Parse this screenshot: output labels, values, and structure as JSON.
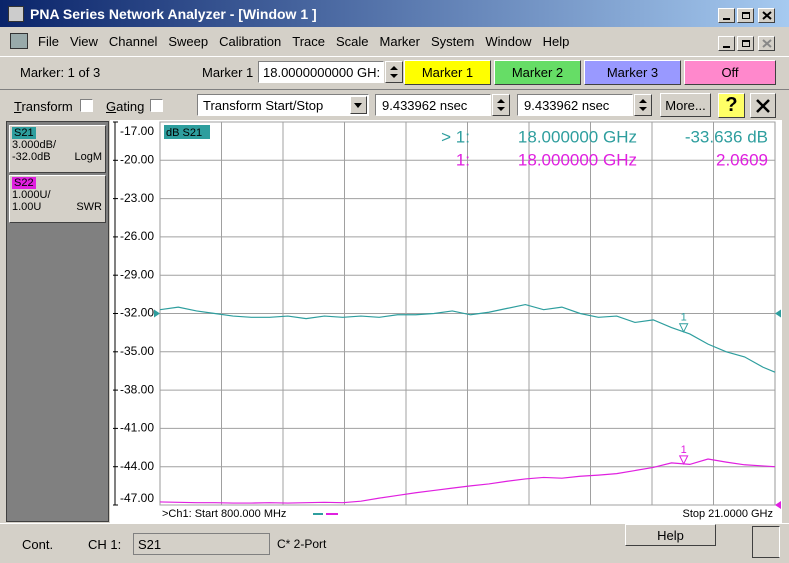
{
  "title_bar": {
    "title": "PNA Series Network Analyzer - [Window 1 ]"
  },
  "menu": [
    "File",
    "View",
    "Channel",
    "Sweep",
    "Calibration",
    "Trace",
    "Scale",
    "Marker",
    "System",
    "Window",
    "Help"
  ],
  "marker_bar": {
    "status": "Marker: 1 of 3",
    "label": "Marker 1",
    "value": "18.0000000000 GH:",
    "buttons": [
      "Marker 1",
      "Marker 2",
      "Marker 3",
      "Off"
    ]
  },
  "transform_bar": {
    "transform": "Transform",
    "gating": "Gating",
    "mode": "Transform Start/Stop",
    "start": "9.433962 nsec",
    "stop": "9.433962 nsec",
    "more": "More...",
    "help": "?"
  },
  "trace_panel": [
    {
      "scale": "3.000dB/",
      "ref": "-32.0dB",
      "format": "LogM"
    },
    {
      "scale": "1.000U/",
      "ref": "1.00U",
      "format": "SWR"
    }
  ],
  "chart_data": {
    "type": "line",
    "trace_label": "dB S21",
    "start_label": ">Ch1: Start  800.000 MHz",
    "stop_label": "Stop  21.0000 GHz",
    "xlim": [
      0.8,
      21
    ],
    "ylim": [
      -47,
      -17
    ],
    "y2lim": [
      1,
      11
    ],
    "yticks": [
      {
        "value": -17,
        "label": "-17.00"
      },
      {
        "value": -20,
        "label": "-20.00"
      },
      {
        "value": -23,
        "label": "-23.00"
      },
      {
        "value": -26,
        "label": "-26.00"
      },
      {
        "value": -29,
        "label": "-29.00"
      },
      {
        "value": -32,
        "label": "-32.00"
      },
      {
        "value": -35,
        "label": "-35.00"
      },
      {
        "value": -38,
        "label": "-38.00"
      },
      {
        "value": -41,
        "label": "-41.00"
      },
      {
        "value": -44,
        "label": "-44.00"
      },
      {
        "value": -47,
        "label": "-47.00"
      }
    ],
    "grid": true,
    "x": [
      0.8,
      1.4,
      2.0,
      2.6,
      3.2,
      3.8,
      4.4,
      5.0,
      5.6,
      6.2,
      6.8,
      7.4,
      8.0,
      8.6,
      9.2,
      9.8,
      10.4,
      11.0,
      11.6,
      12.2,
      12.8,
      13.4,
      14.0,
      14.6,
      15.2,
      15.8,
      16.4,
      17.0,
      17.6,
      18.2,
      18.8,
      19.4,
      20.0,
      20.6,
      21.0
    ],
    "series": [
      {
        "name": "S21",
        "color": "#2e9e9e",
        "values": [
          -31.7,
          -31.5,
          -31.8,
          -32.0,
          -32.2,
          -32.3,
          -32.3,
          -32.2,
          -32.4,
          -32.2,
          -32.3,
          -32.2,
          -32.3,
          -32.1,
          -32.1,
          -32.0,
          -31.8,
          -32.1,
          -31.9,
          -31.6,
          -31.3,
          -31.7,
          -31.5,
          -32.0,
          -32.3,
          -32.2,
          -32.7,
          -32.5,
          -33.1,
          -33.6,
          -34.4,
          -35.0,
          -35.4,
          -36.2,
          -36.6
        ]
      },
      {
        "name": "S22",
        "color": "#e020e0",
        "axis": "y2",
        "values": [
          1.08,
          1.07,
          1.06,
          1.06,
          1.05,
          1.05,
          1.06,
          1.05,
          1.06,
          1.07,
          1.06,
          1.1,
          1.18,
          1.25,
          1.32,
          1.38,
          1.44,
          1.5,
          1.55,
          1.62,
          1.68,
          1.72,
          1.7,
          1.75,
          1.78,
          1.82,
          1.9,
          1.98,
          2.1,
          2.06,
          2.2,
          2.12,
          2.05,
          2.02,
          2.0
        ]
      }
    ],
    "markers": [
      {
        "label": "1",
        "x": 18
      }
    ],
    "readouts": [
      {
        "marker": "> 1:",
        "freq": "18.000000 GHz",
        "value": "-33.636 dB"
      },
      {
        "marker": "1:",
        "freq": "18.000000 GHz",
        "value": "2.0609"
      }
    ]
  },
  "status_bar": {
    "mode": "Cont.",
    "channel": "CH 1:",
    "cal": "C* 2-Port",
    "help": "Help"
  }
}
